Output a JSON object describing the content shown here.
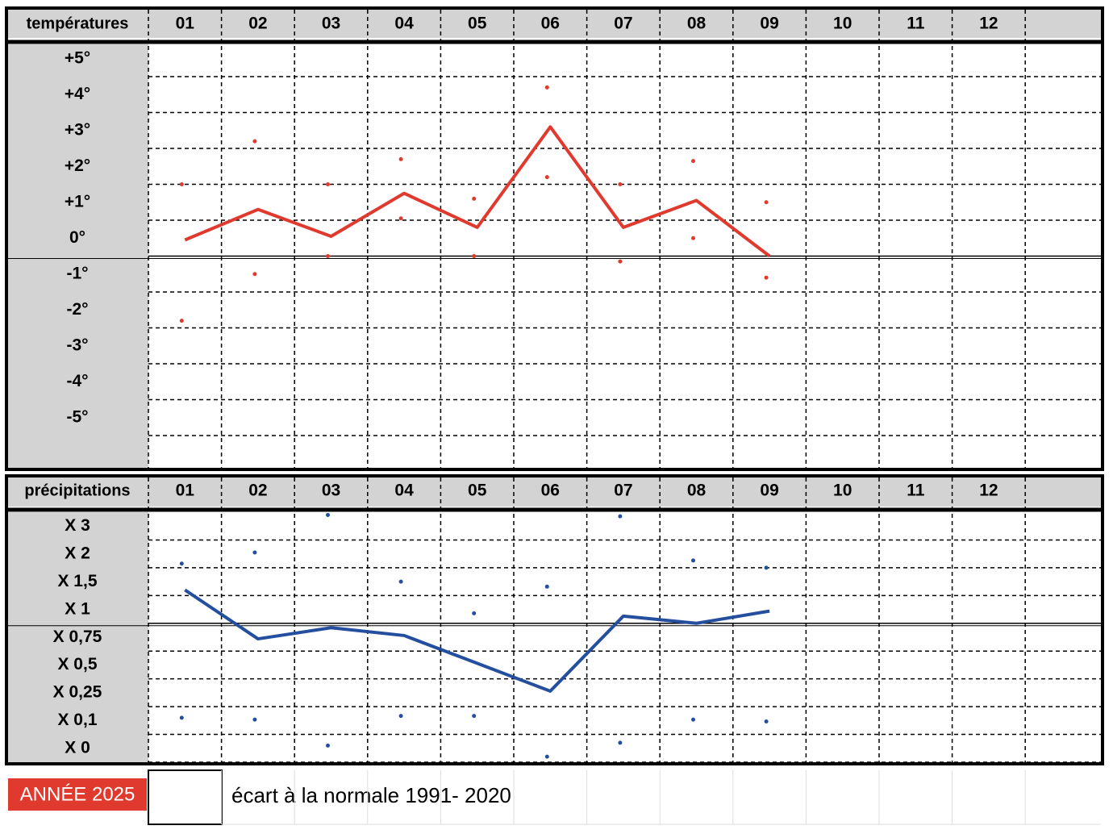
{
  "chart_data": [
    {
      "type": "line",
      "title": "températures",
      "categories": [
        "01",
        "02",
        "03",
        "04",
        "05",
        "06",
        "07",
        "08",
        "09",
        "10",
        "11",
        "12"
      ],
      "ylim": [
        -5.9,
        5.9
      ],
      "yticks": [
        {
          "value": 5,
          "label": "+5°"
        },
        {
          "value": 4,
          "label": "+4°"
        },
        {
          "value": 3,
          "label": "+3°"
        },
        {
          "value": 2,
          "label": "+2°"
        },
        {
          "value": 1,
          "label": "+1°"
        },
        {
          "value": 0,
          "label": "0°"
        },
        {
          "value": -1,
          "label": "-1°"
        },
        {
          "value": -2,
          "label": "-2°"
        },
        {
          "value": -3,
          "label": "-3°"
        },
        {
          "value": -4,
          "label": "-4°"
        },
        {
          "value": -5,
          "label": "-5°"
        }
      ],
      "reference": 0,
      "grid": true,
      "series": [
        {
          "style": "line",
          "color": "#e03a2f",
          "values": [
            0.45,
            1.3,
            0.55,
            1.75,
            0.8,
            3.6,
            0.8,
            1.55,
            0.0,
            null,
            null,
            null
          ]
        },
        {
          "style": "dots",
          "color": "#e03a2f",
          "values": [
            2.0,
            3.2,
            2.0,
            2.7,
            1.6,
            4.7,
            2.0,
            2.65,
            1.5,
            null,
            null,
            null
          ]
        },
        {
          "style": "dots",
          "color": "#e03a2f",
          "values": [
            -1.8,
            -0.5,
            0.0,
            1.05,
            0.0,
            2.2,
            -0.15,
            0.5,
            -0.6,
            null,
            null,
            null
          ]
        }
      ]
    },
    {
      "type": "line",
      "title": "précipitations",
      "categories": [
        "01",
        "02",
        "03",
        "04",
        "05",
        "06",
        "07",
        "08",
        "09",
        "10",
        "11",
        "12"
      ],
      "ylim": [
        0,
        4
      ],
      "yticks": [
        {
          "value": 3,
          "label": "X 3"
        },
        {
          "value": 2,
          "label": "X 2"
        },
        {
          "value": 1.5,
          "label": "X 1,5"
        },
        {
          "value": 1,
          "label": "X 1"
        },
        {
          "value": 0.75,
          "label": "X 0,75"
        },
        {
          "value": 0.5,
          "label": "X 0,5"
        },
        {
          "value": 0.25,
          "label": "X 0,25"
        },
        {
          "value": 0.1,
          "label": "X 0,1"
        },
        {
          "value": 0,
          "label": "X 0"
        }
      ],
      "reference": 1,
      "grid": true,
      "series": [
        {
          "style": "line",
          "color": "#244f9e",
          "values": [
            1.6,
            0.86,
            0.96,
            0.89,
            0.64,
            0.39,
            1.13,
            1.0,
            1.22,
            null,
            null,
            null
          ]
        },
        {
          "style": "dots",
          "color": "#244f9e",
          "values": [
            2.15,
            2.55,
            3.9,
            1.75,
            1.18,
            1.66,
            3.85,
            2.26,
            2.0,
            null,
            null,
            null
          ]
        },
        {
          "style": "dots",
          "color": "#244f9e",
          "values": [
            0.19,
            0.18,
            0.06,
            0.2,
            0.2,
            0.02,
            0.07,
            0.18,
            0.17,
            null,
            null,
            null
          ]
        }
      ]
    }
  ],
  "footer": {
    "year": "ANNÉE 2025",
    "note": "écart à la normale 1991- 2020"
  }
}
